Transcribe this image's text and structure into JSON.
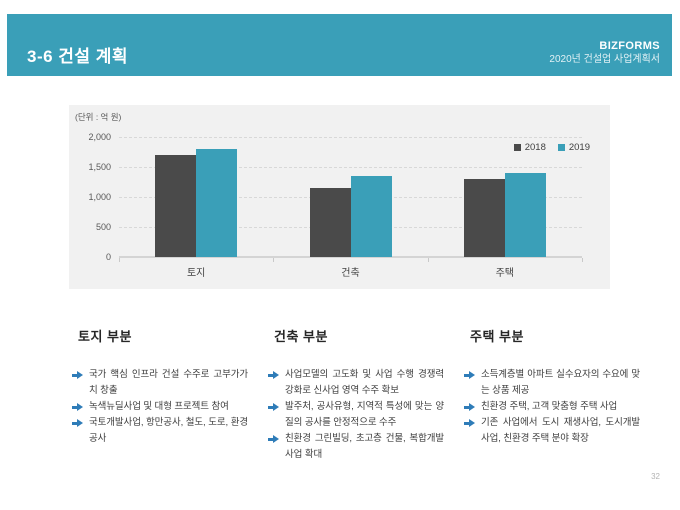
{
  "page": {
    "page_number": "32"
  },
  "colors": {
    "accent_teal": "#3a9fb8",
    "bar_2018": "#4a4a4a",
    "bar_2019": "#3a9fb8",
    "arrow_blue": "#2e7cb8"
  },
  "header": {
    "title": "3-6 건설 계획",
    "brand": "BIZFORMS",
    "subtitle": "2020년 건설업 사업계획서"
  },
  "chart_data": {
    "type": "bar",
    "unit_label": "(단위 : 억 원)",
    "categories": [
      "토지",
      "건축",
      "주택"
    ],
    "series": [
      {
        "name": "2018",
        "color": "#4a4a4a",
        "values": [
          1700,
          1150,
          1300
        ]
      },
      {
        "name": "2019",
        "color": "#3a9fb8",
        "values": [
          1800,
          1350,
          1400
        ]
      }
    ],
    "ylim": [
      0,
      2000
    ],
    "yticks": [
      0,
      500,
      1000,
      1500,
      2000
    ],
    "ytick_labels": [
      "0",
      "500",
      "1,000",
      "1,500",
      "2,000"
    ],
    "grid": true,
    "grid_style": "dashed",
    "legend_position": "top-right"
  },
  "icons": {
    "bullet_arrow": "arrow-right"
  },
  "sections": [
    {
      "heading": "토지 부분",
      "items": [
        "국가 핵심 인프라 건설 수주로 고부가가치 창출",
        "녹색뉴딜사업 및 대형 프로젝트 참여",
        "국토개발사업, 항만공사, 철도, 도로, 환경공사"
      ]
    },
    {
      "heading": "건축 부분",
      "items": [
        "사업모델의 고도화 및 사업 수행 경쟁력 강화로 신사업 영역 수주 확보",
        "발주처, 공사유형, 지역적 특성에 맞는 양질의 공사를 안정적으로 수주",
        "친환경 그린빌딩, 초고층 건물, 복합개발 사업 확대"
      ]
    },
    {
      "heading": "주택 부분",
      "items": [
        "소득계층별 아파트 실수요자의 수요에 맞는 상품 제공",
        "친환경 주택, 고객 맞춤형 주택 사업",
        "기존 사업에서 도시 재생사업, 도시개발사업, 친환경 주택 분야 확장"
      ]
    }
  ]
}
